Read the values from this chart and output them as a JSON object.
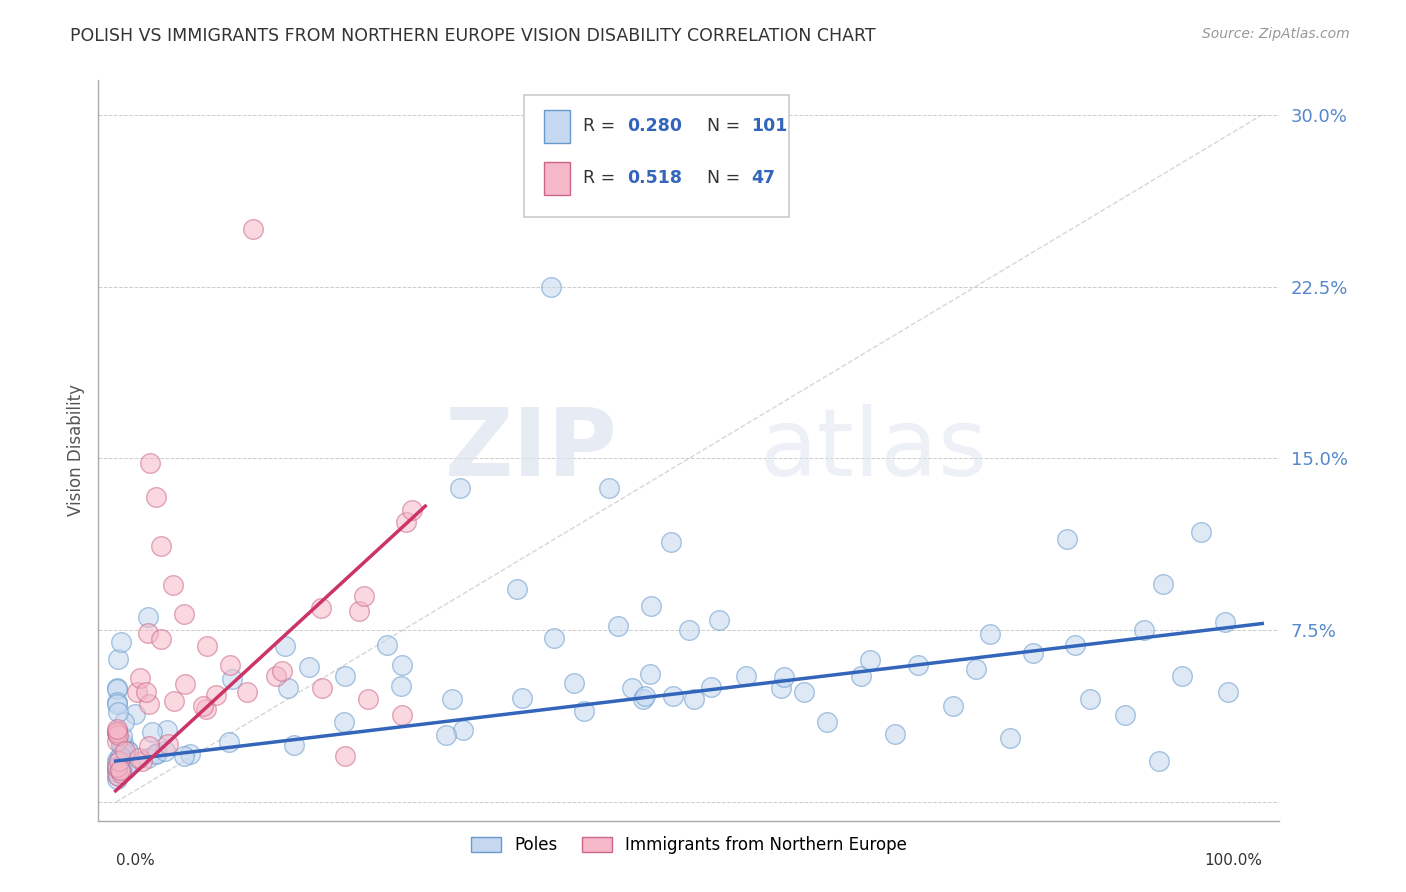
{
  "title": "POLISH VS IMMIGRANTS FROM NORTHERN EUROPE VISION DISABILITY CORRELATION CHART",
  "source": "Source: ZipAtlas.com",
  "ylabel": "Vision Disability",
  "watermark_zip": "ZIP",
  "watermark_atlas": "atlas",
  "blue_fill": "#c5d8f0",
  "blue_edge": "#6699cc",
  "pink_fill": "#f5b8c8",
  "pink_edge": "#cc6688",
  "blue_trend": "#3366bb",
  "pink_trend": "#cc3366",
  "diag_color": "#cccccc",
  "grid_color": "#cccccc",
  "ytick_color": "#5588cc",
  "background": "#ffffff",
  "title_color": "#333333",
  "source_color": "#999999",
  "ylabel_color": "#555555",
  "legend_r1": "0.280",
  "legend_n1": "101",
  "legend_r2": "0.518",
  "legend_n2": "47"
}
